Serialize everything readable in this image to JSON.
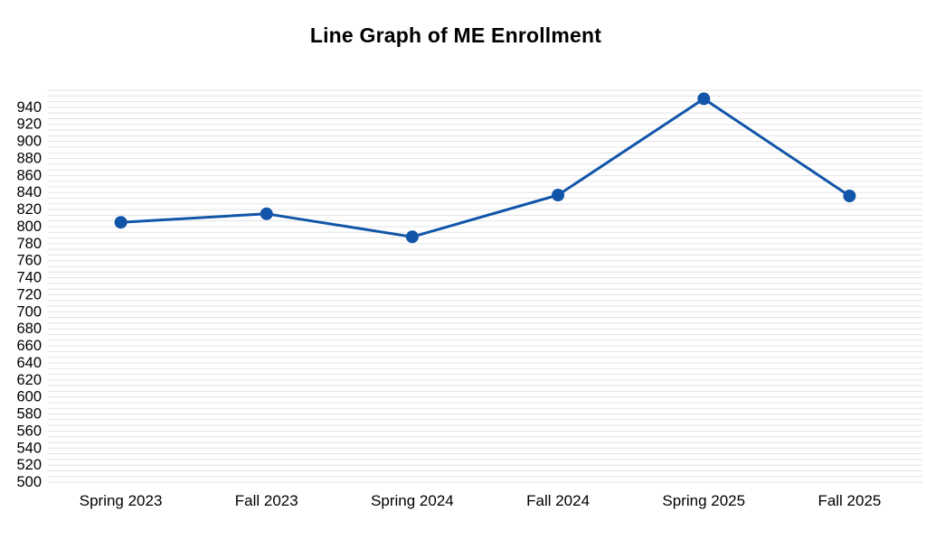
{
  "chart_data": {
    "type": "line",
    "title": "Line Graph of ME Enrollment",
    "categories": [
      "Spring 2023",
      "Fall 2023",
      "Spring 2024",
      "Fall 2024",
      "Spring 2025",
      "Fall 2025"
    ],
    "values": [
      805,
      815,
      788,
      837,
      950,
      836
    ],
    "xlabel": "",
    "ylabel": "",
    "ylim": [
      500,
      960
    ],
    "yticks": {
      "start": 500,
      "end": 940,
      "step": 20
    },
    "minor_grid_divisions": 3,
    "grid": true,
    "legend_position": "none",
    "colors": {
      "line": "#1155A8",
      "marker": "#1155A8",
      "grid": "#e3e3e3",
      "text": "#000000",
      "background": "#ffffff"
    },
    "marker_radius": 7,
    "line_width": 3
  }
}
